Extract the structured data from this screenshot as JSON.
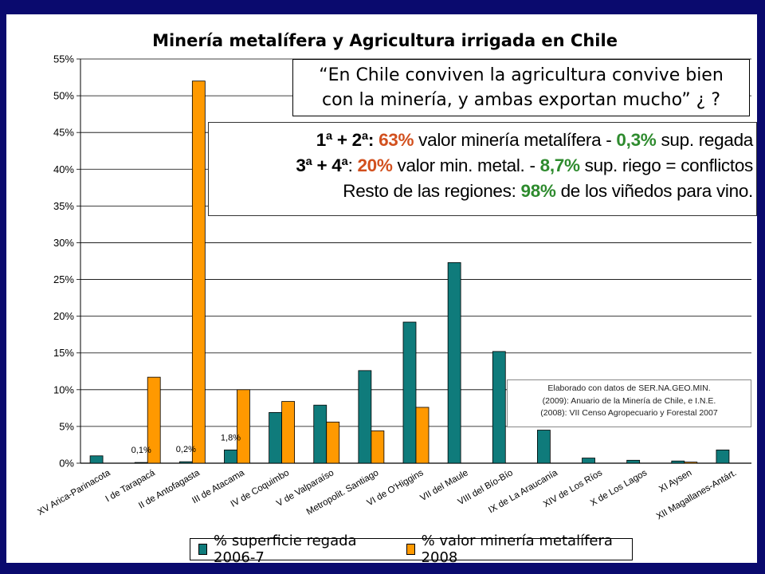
{
  "quote": {
    "line1": "“En Chile conviven la agricultura convive bien",
    "line2": "con la minería, y ambas exportan mucho” ¿ ?"
  },
  "info": {
    "l1_a": "1ª + 2ª: ",
    "l1_b": "63%",
    "l1_c": " valor minería metalífera - ",
    "l1_d": "0,3%",
    "l1_e": " sup. regada",
    "l2_a": "3ª + 4ª",
    "l2_b": ": ",
    "l2_c": "20%",
    "l2_d": " valor min. metal. - ",
    "l2_e": "8,7%",
    "l2_f": " sup. riego = conflictos",
    "l3_a": "Resto de las regiones: ",
    "l3_b": "98%",
    "l3_c": " de los viñedos para vino."
  },
  "source": {
    "line1": "Elaborado con datos de SER.NA.GEO.MIN.",
    "line2": "(2009):  Anuario de la Minería de Chile, e I.N.E.",
    "line3": "(2008):  VII Censo Agropecuario y Forestal 2007"
  },
  "colors": {
    "teal": "#0f7b7b",
    "orange": "#ff9900",
    "background": "#0a0a6e"
  },
  "chart_data": {
    "type": "bar",
    "title": "Minería metalífera y Agricultura irrigada en Chile",
    "categories": [
      "XV Arica-Parinacota",
      "I de Tarapacá",
      "II de Antofagasta",
      "III de Atacama",
      "IV de Coquimbo",
      "V de Valparaíso",
      "Metropolit. Santiago",
      "VI de O'Higgins",
      "VII del Maule",
      "VIII del Bío-Bío",
      "IX de La Araucanía",
      "XIV de Los Ríos",
      "X de Los Lagos",
      "XI Aysen",
      "XII Magallanes-Antárt."
    ],
    "series": [
      {
        "name": "% superficie regada 2006-7",
        "values": [
          1.0,
          0.1,
          0.2,
          1.8,
          6.9,
          7.9,
          12.6,
          19.2,
          27.3,
          15.2,
          4.5,
          0.7,
          0.4,
          0.3,
          1.8
        ]
      },
      {
        "name": "% valor minería metalífera 2008",
        "values": [
          0,
          11.7,
          52.0,
          10.0,
          8.4,
          5.6,
          4.4,
          7.6,
          0,
          0,
          0,
          0,
          0,
          0.15,
          0
        ]
      }
    ],
    "ylim": [
      0,
      55
    ],
    "yticks": [
      "0%",
      "5%",
      "10%",
      "15%",
      "20%",
      "25%",
      "30%",
      "35%",
      "40%",
      "45%",
      "50%",
      "55%"
    ],
    "data_labels": [
      {
        "category": "I de Tarapacá",
        "text": "0,1%"
      },
      {
        "category": "II de Antofagasta",
        "text": "0,2%"
      },
      {
        "category": "III de Atacama",
        "text": "1,8%"
      }
    ],
    "grid": true,
    "legend": "bottom"
  }
}
